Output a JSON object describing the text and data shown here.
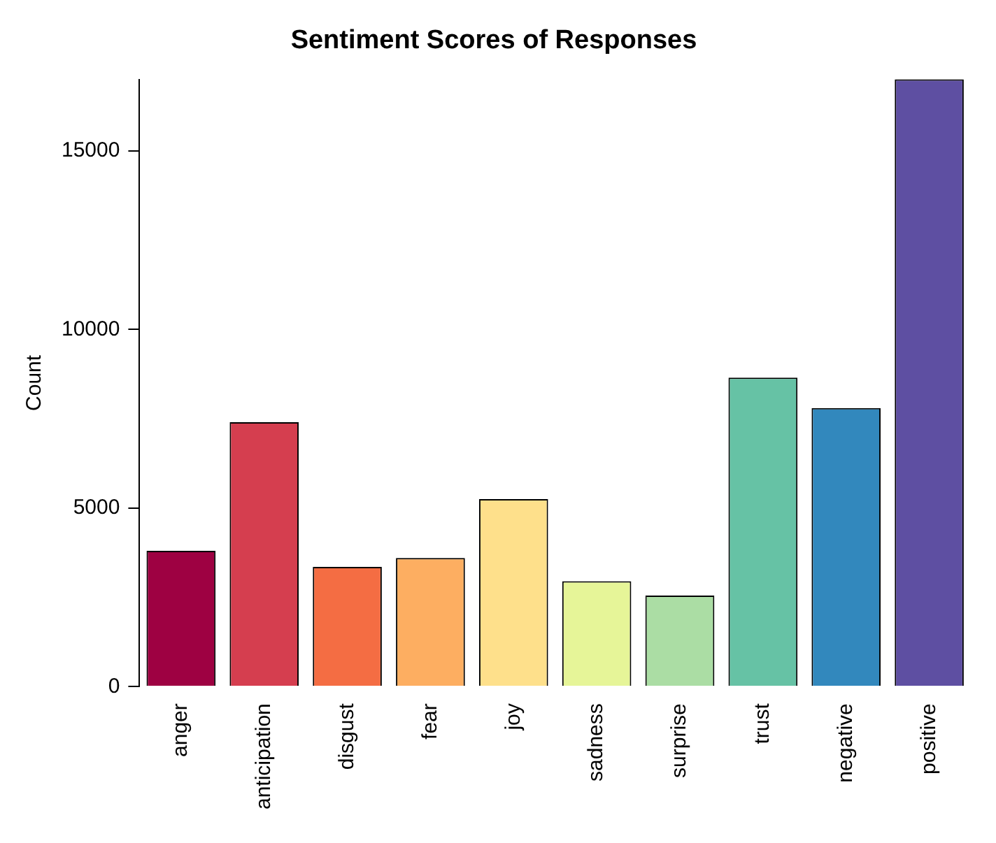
{
  "chart_data": {
    "type": "bar",
    "title": "Sentiment Scores of Responses",
    "ylabel": "Count",
    "categories": [
      "anger",
      "anticipation",
      "disgust",
      "fear",
      "joy",
      "sadness",
      "surprise",
      "trust",
      "negative",
      "positive"
    ],
    "values": [
      3800,
      7400,
      3350,
      3600,
      5250,
      2950,
      2550,
      8650,
      7800,
      17000
    ],
    "colors": [
      "#9e0142",
      "#d53e4f",
      "#f46d43",
      "#fdae61",
      "#fee08b",
      "#e6f598",
      "#abdda4",
      "#66c2a5",
      "#3288bd",
      "#5e4fa2"
    ],
    "ylim": [
      0,
      17000
    ],
    "yticks": [
      0,
      5000,
      10000,
      15000
    ],
    "grid": false
  }
}
